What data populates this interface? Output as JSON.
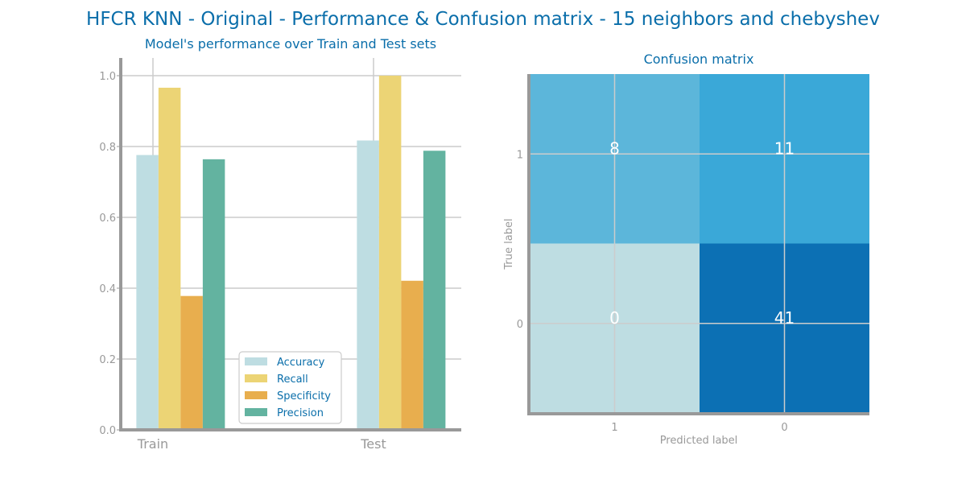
{
  "figure": {
    "title": "HFCR KNN - Original - Performance & Confusion matrix - 15 neighbors and chebyshev",
    "title_color": "#0a6eaa",
    "text_color": "#999999",
    "axis_color": "#999999",
    "grid_color": "#cccccc"
  },
  "chart_data": [
    {
      "type": "bar",
      "title": "Model's performance over Train and Test sets",
      "categories": [
        "Train",
        "Test"
      ],
      "series": [
        {
          "name": "Accuracy",
          "color": "#bedde2",
          "values": [
            0.776,
            0.817
          ]
        },
        {
          "name": "Recall",
          "color": "#ecd475",
          "values": [
            0.966,
            1.0
          ]
        },
        {
          "name": "Specificity",
          "color": "#e8ae4e",
          "values": [
            0.378,
            0.421
          ]
        },
        {
          "name": "Precision",
          "color": "#63b3a0",
          "values": [
            0.764,
            0.788
          ]
        }
      ],
      "ylim": [
        0,
        1.05
      ],
      "yticks": [
        "0.0",
        "0.2",
        "0.4",
        "0.6",
        "0.8",
        "1.0"
      ],
      "grid": true,
      "legend_placement": "lower-center"
    },
    {
      "type": "heatmap",
      "title": "Confusion matrix",
      "xlabel": "Predicted label",
      "ylabel": "True label",
      "x_labels": [
        "1",
        "0"
      ],
      "y_labels": [
        "1",
        "0"
      ],
      "matrix": [
        [
          8,
          11
        ],
        [
          0,
          41
        ]
      ],
      "cell_colors": [
        [
          "#5cb6da",
          "#3aa8d8"
        ],
        [
          "#bedde2",
          "#0c70b4"
        ]
      ],
      "value_color": "#ffffff",
      "grid": true
    }
  ]
}
